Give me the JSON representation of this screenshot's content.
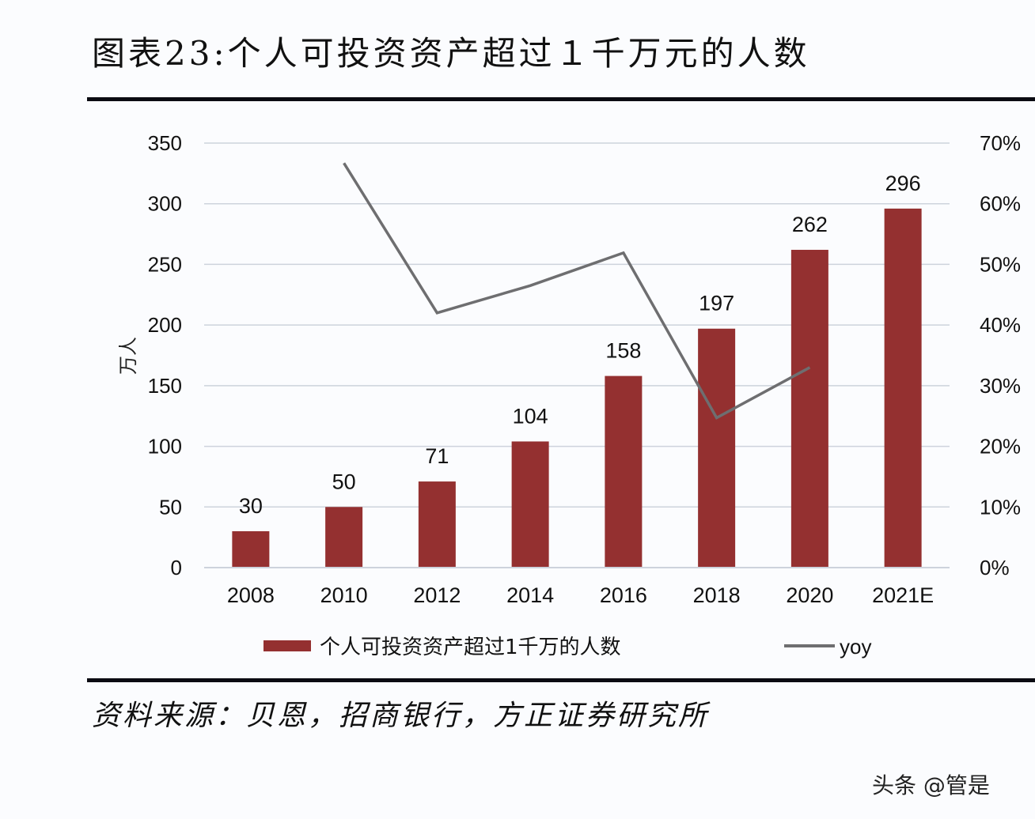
{
  "header": {
    "title": "图表23:个人可投资资产超过１千万元的人数"
  },
  "footer": {
    "source": "资料来源：贝恩，招商银行，方正证券研究所",
    "watermark": "头条 @管是"
  },
  "colors": {
    "bar": "#943030",
    "line": "#6e6e70",
    "grid": "#cdd3dc",
    "text": "#111111"
  },
  "chart_data": {
    "type": "bar",
    "title": "图表23:个人可投资资产超过１千万元的人数",
    "categories": [
      "2008",
      "2010",
      "2012",
      "2014",
      "2016",
      "2018",
      "2020",
      "2021E"
    ],
    "series": [
      {
        "name": "个人可投资资产超过1千万的人数",
        "type": "bar",
        "axis": "left",
        "values": [
          30,
          50,
          71,
          104,
          158,
          197,
          262,
          296
        ],
        "labels": [
          "30",
          "50",
          "71",
          "104",
          "158",
          "197",
          "262",
          "296"
        ]
      },
      {
        "name": "yoy",
        "type": "line",
        "axis": "right",
        "values": [
          null,
          66.7,
          42.0,
          46.5,
          51.9,
          24.7,
          33.0,
          null
        ]
      }
    ],
    "xlabel": "",
    "ylabel": "万人",
    "ylim": [
      0,
      350
    ],
    "yticks": [
      "0",
      "50",
      "100",
      "150",
      "200",
      "250",
      "300",
      "350"
    ],
    "y2lim": [
      0,
      70
    ],
    "y2ticks": [
      "0%",
      "10%",
      "20%",
      "30%",
      "40%",
      "50%",
      "60%",
      "70%"
    ],
    "grid": true,
    "legend_position": "bottom"
  }
}
